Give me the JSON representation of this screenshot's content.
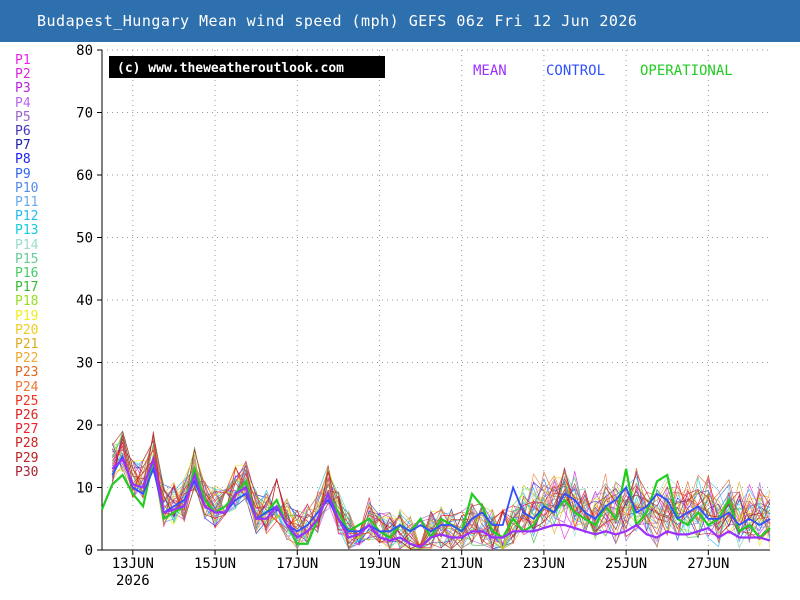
{
  "title": "Budapest_Hungary Mean wind speed (mph) GEFS 06z Fri 12 Jun 2026",
  "watermark": "(c) www.theweatheroutlook.com",
  "legend": [
    {
      "label": "MEAN",
      "color": "#9b30ff"
    },
    {
      "label": "CONTROL",
      "color": "#3050ff"
    },
    {
      "label": "OPERATIONAL",
      "color": "#22cc22"
    }
  ],
  "members": [
    {
      "label": "P1",
      "color": "#ee22ee"
    },
    {
      "label": "P2",
      "color": "#dd22dd"
    },
    {
      "label": "P3",
      "color": "#bb22dd"
    },
    {
      "label": "P4",
      "color": "#bb66ee"
    },
    {
      "label": "P5",
      "color": "#9966cc"
    },
    {
      "label": "P6",
      "color": "#4433bb"
    },
    {
      "label": "P7",
      "color": "#2222aa"
    },
    {
      "label": "P8",
      "color": "#2222ee"
    },
    {
      "label": "P9",
      "color": "#3366ee"
    },
    {
      "label": "P10",
      "color": "#5588ee"
    },
    {
      "label": "P11",
      "color": "#66aaee"
    },
    {
      "label": "P12",
      "color": "#22bbee"
    },
    {
      "label": "P13",
      "color": "#11ccdd"
    },
    {
      "label": "P14",
      "color": "#99ddcc"
    },
    {
      "label": "P15",
      "color": "#66cc99"
    },
    {
      "label": "P16",
      "color": "#44cc66"
    },
    {
      "label": "P17",
      "color": "#33bb33"
    },
    {
      "label": "P18",
      "color": "#99dd22"
    },
    {
      "label": "P19",
      "color": "#eeee22"
    },
    {
      "label": "P20",
      "color": "#eecc22"
    },
    {
      "label": "P21",
      "color": "#ddaa22"
    },
    {
      "label": "P22",
      "color": "#eeaa33"
    },
    {
      "label": "P23",
      "color": "#dd6622"
    },
    {
      "label": "P24",
      "color": "#ee7733"
    },
    {
      "label": "P25",
      "color": "#ee3322"
    },
    {
      "label": "P26",
      "color": "#dd2222"
    },
    {
      "label": "P27",
      "color": "#ee2233"
    },
    {
      "label": "P28",
      "color": "#cc2222"
    },
    {
      "label": "P29",
      "color": "#bb2222"
    },
    {
      "label": "P30",
      "color": "#aa2233"
    }
  ],
  "chart_data": {
    "type": "line",
    "title": "Budapest_Hungary Mean wind speed (mph) GEFS 06z Fri 12 Jun 2026",
    "ylabel": "",
    "xlabel": "",
    "ylim": [
      0,
      80
    ],
    "yticks": [
      0,
      10,
      20,
      30,
      40,
      50,
      60,
      70,
      80
    ],
    "xlim": [
      "2026-06-12 06:00",
      "2026-06-28 12:00"
    ],
    "xticks": [
      {
        "label": "13JUN",
        "sublabel": "2026",
        "date": "2026-06-13"
      },
      {
        "label": "15JUN",
        "date": "2026-06-15"
      },
      {
        "label": "17JUN",
        "date": "2026-06-17"
      },
      {
        "label": "19JUN",
        "date": "2026-06-19"
      },
      {
        "label": "21JUN",
        "date": "2026-06-21"
      },
      {
        "label": "23JUN",
        "date": "2026-06-23"
      },
      {
        "label": "25JUN",
        "date": "2026-06-25"
      },
      {
        "label": "27JUN",
        "date": "2026-06-27"
      }
    ],
    "grid": true,
    "legend_position": "top-right",
    "x": [
      "2026-06-12 06:00",
      "2026-06-12 12:00",
      "2026-06-12 18:00",
      "2026-06-13 00:00",
      "2026-06-13 06:00",
      "2026-06-13 12:00",
      "2026-06-13 18:00",
      "2026-06-14 00:00",
      "2026-06-14 06:00",
      "2026-06-14 12:00",
      "2026-06-14 18:00",
      "2026-06-15 00:00",
      "2026-06-15 06:00",
      "2026-06-15 12:00",
      "2026-06-15 18:00",
      "2026-06-16 00:00",
      "2026-06-16 06:00",
      "2026-06-16 12:00",
      "2026-06-16 18:00",
      "2026-06-17 00:00",
      "2026-06-17 06:00",
      "2026-06-17 12:00",
      "2026-06-17 18:00",
      "2026-06-18 00:00",
      "2026-06-18 06:00",
      "2026-06-18 12:00",
      "2026-06-18 18:00",
      "2026-06-19 00:00",
      "2026-06-19 06:00",
      "2026-06-19 12:00",
      "2026-06-19 18:00",
      "2026-06-20 00:00",
      "2026-06-20 06:00",
      "2026-06-20 12:00",
      "2026-06-20 18:00",
      "2026-06-21 00:00",
      "2026-06-21 06:00",
      "2026-06-21 12:00",
      "2026-06-21 18:00",
      "2026-06-22 00:00",
      "2026-06-22 06:00",
      "2026-06-22 12:00",
      "2026-06-22 18:00",
      "2026-06-23 00:00",
      "2026-06-23 06:00",
      "2026-06-23 12:00",
      "2026-06-23 18:00",
      "2026-06-24 00:00",
      "2026-06-24 06:00",
      "2026-06-24 12:00",
      "2026-06-24 18:00",
      "2026-06-25 00:00",
      "2026-06-25 06:00",
      "2026-06-25 12:00",
      "2026-06-25 18:00",
      "2026-06-26 00:00",
      "2026-06-26 06:00",
      "2026-06-26 12:00",
      "2026-06-26 18:00",
      "2026-06-27 00:00",
      "2026-06-27 06:00",
      "2026-06-27 12:00",
      "2026-06-27 18:00",
      "2026-06-28 00:00",
      "2026-06-28 06:00",
      "2026-06-28 12:00"
    ],
    "series": [
      {
        "name": "OPERATIONAL",
        "color": "#22cc22",
        "width": 2.2,
        "values": [
          6.5,
          10.5,
          12,
          9,
          7,
          14.5,
          5,
          6,
          7,
          13,
          8,
          6,
          7,
          9,
          11,
          5,
          6,
          8,
          4,
          1,
          1,
          5,
          9,
          6,
          3,
          4,
          5,
          3,
          2,
          4,
          3,
          5,
          2,
          5,
          4,
          3,
          9,
          7,
          3,
          2,
          5,
          3,
          4,
          7,
          6,
          8,
          6,
          5,
          4,
          7,
          5,
          13,
          4,
          6,
          11,
          12,
          5,
          4,
          6,
          4,
          5,
          8,
          3,
          4,
          2,
          3.5
        ]
      },
      {
        "name": "CONTROL",
        "color": "#3050ff",
        "width": 1.8,
        "values": [
          null,
          12,
          15,
          10,
          9,
          13,
          6,
          7,
          8,
          11,
          7,
          6,
          6,
          8,
          9,
          5,
          6,
          7,
          4,
          3,
          4,
          6,
          8,
          5,
          3,
          3,
          4,
          3,
          3,
          4,
          3,
          4,
          3,
          4,
          4,
          3,
          5,
          6,
          4,
          4,
          10,
          6,
          5,
          7,
          6,
          9,
          8,
          6,
          5,
          7,
          8,
          10,
          6,
          7,
          9,
          8,
          5,
          6,
          7,
          5,
          5,
          6,
          4,
          5,
          4,
          5
        ]
      },
      {
        "name": "MEAN",
        "color": "#9b30ff",
        "width": 2.2,
        "values": [
          null,
          13,
          14.5,
          10.5,
          10,
          14.5,
          6,
          6.5,
          7,
          12,
          7,
          6,
          6,
          9,
          10,
          5,
          5,
          7,
          4,
          2,
          3,
          5,
          9,
          5,
          2,
          2.5,
          4,
          2,
          1.5,
          2,
          1,
          0.5,
          2,
          2.5,
          2,
          2,
          3,
          3,
          2,
          2,
          3,
          3,
          3,
          3.5,
          4,
          4,
          3.5,
          3,
          2.5,
          3,
          2.5,
          3,
          4,
          2.5,
          2,
          3,
          2.5,
          2.5,
          3,
          3.5,
          2,
          3,
          2,
          2,
          2,
          1.5
        ]
      }
    ]
  }
}
